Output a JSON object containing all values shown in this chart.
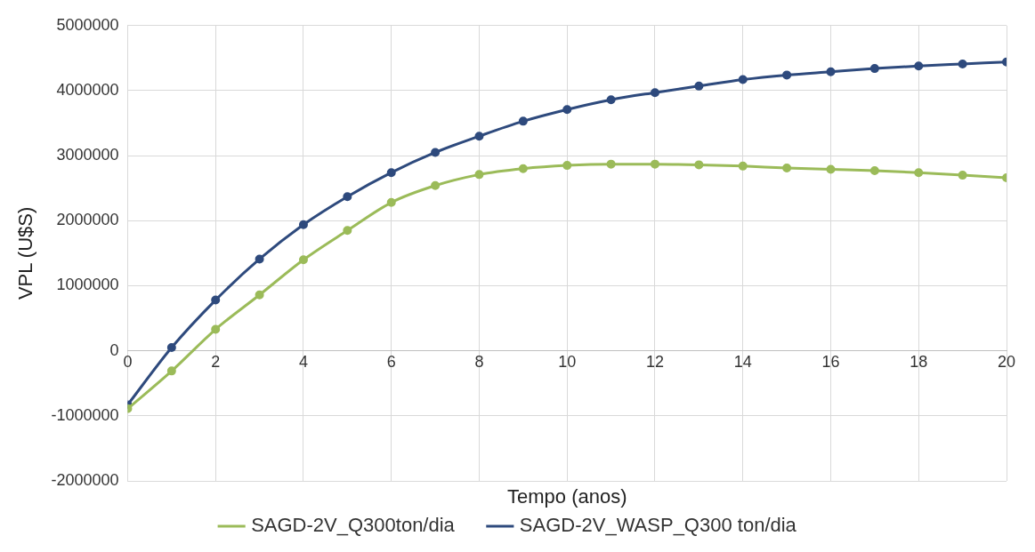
{
  "chart_data": {
    "type": "line",
    "xlabel": "Tempo (anos)",
    "ylabel": "VPL (U$S)",
    "x": [
      0,
      1,
      2,
      3,
      4,
      5,
      6,
      7,
      8,
      9,
      10,
      11,
      12,
      13,
      14,
      15,
      16,
      17,
      18,
      19,
      20
    ],
    "series": [
      {
        "name": "SAGD-2V_Q300ton/dia",
        "color": "#9bbb59",
        "values": [
          -890000,
          -310000,
          330000,
          860000,
          1400000,
          1850000,
          2280000,
          2540000,
          2710000,
          2800000,
          2850000,
          2870000,
          2870000,
          2860000,
          2840000,
          2810000,
          2790000,
          2770000,
          2740000,
          2700000,
          2660000
        ]
      },
      {
        "name": "SAGD-2V_WASP_Q300 ton/dia",
        "color": "#2e4a7d",
        "values": [
          -830000,
          50000,
          780000,
          1410000,
          1940000,
          2370000,
          2740000,
          3050000,
          3300000,
          3530000,
          3710000,
          3860000,
          3970000,
          4070000,
          4170000,
          4240000,
          4290000,
          4340000,
          4380000,
          4410000,
          4440000
        ]
      }
    ],
    "xlim": [
      0,
      20
    ],
    "xticks": [
      0,
      2,
      4,
      6,
      8,
      10,
      12,
      14,
      16,
      18,
      20
    ],
    "ylim": [
      -2000000,
      5000000
    ],
    "yticks": [
      -2000000,
      -1000000,
      0,
      1000000,
      2000000,
      3000000,
      4000000,
      5000000
    ],
    "grid": true,
    "legend": "bottom",
    "marker": "circle",
    "line_style": "solid"
  }
}
